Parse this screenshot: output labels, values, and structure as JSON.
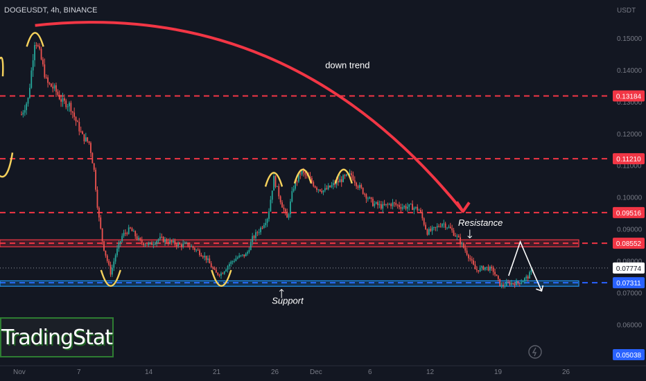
{
  "header": {
    "symbol_line": "DOGEUSDT, 4h, BINANCE"
  },
  "logo": {
    "text": "TradingStat"
  },
  "colors": {
    "background": "#131722",
    "up": "#26a69a",
    "down": "#ef5350",
    "trend_arrow": "#f23645",
    "level_line": "#f23645",
    "support_line": "#2962ff",
    "resistance_zone": "#f23645",
    "support_zone": "#2196f3",
    "annotation": "#f5d15c"
  },
  "chart_data": {
    "type": "candlestick",
    "symbol": "DOGEUSDT",
    "interval": "4h",
    "exchange": "BINANCE",
    "y_unit": "USDT",
    "ylim": [
      0.047,
      0.162
    ],
    "y_ticks": [
      "0.15000",
      "0.14000",
      "0.13000",
      "0.12000",
      "0.11000",
      "0.10000",
      "0.09000",
      "0.08000",
      "0.07000",
      "0.06000"
    ],
    "y_tick_values": [
      0.15,
      0.14,
      0.13,
      0.12,
      0.11,
      0.1,
      0.09,
      0.08,
      0.07,
      0.06
    ],
    "x_ticks": [
      "Nov",
      "7",
      "14",
      "21",
      "26",
      "Dec",
      "6",
      "12",
      "19",
      "26"
    ],
    "x_tick_values": [
      0,
      6,
      13,
      20,
      26,
      30,
      36,
      42,
      49,
      56
    ],
    "close_path": [
      {
        "x": 0,
        "y": 0.126
      },
      {
        "x": 0.7,
        "y": 0.131
      },
      {
        "x": 1.4,
        "y": 0.15
      },
      {
        "x": 1.9,
        "y": 0.145
      },
      {
        "x": 2.6,
        "y": 0.136
      },
      {
        "x": 3.4,
        "y": 0.134
      },
      {
        "x": 4.2,
        "y": 0.13
      },
      {
        "x": 5.0,
        "y": 0.129
      },
      {
        "x": 5.6,
        "y": 0.124
      },
      {
        "x": 6.3,
        "y": 0.119
      },
      {
        "x": 7.0,
        "y": 0.117
      },
      {
        "x": 7.5,
        "y": 0.108
      },
      {
        "x": 7.9,
        "y": 0.095
      },
      {
        "x": 8.4,
        "y": 0.085
      },
      {
        "x": 9.2,
        "y": 0.076
      },
      {
        "x": 9.7,
        "y": 0.082
      },
      {
        "x": 10.4,
        "y": 0.088
      },
      {
        "x": 11.2,
        "y": 0.09
      },
      {
        "x": 12.2,
        "y": 0.086
      },
      {
        "x": 13.2,
        "y": 0.085
      },
      {
        "x": 14.2,
        "y": 0.087
      },
      {
        "x": 15.2,
        "y": 0.086
      },
      {
        "x": 16.2,
        "y": 0.085
      },
      {
        "x": 17.2,
        "y": 0.085
      },
      {
        "x": 18.2,
        "y": 0.083
      },
      {
        "x": 19.0,
        "y": 0.081
      },
      {
        "x": 20.0,
        "y": 0.076
      },
      {
        "x": 20.6,
        "y": 0.076
      },
      {
        "x": 21.4,
        "y": 0.079
      },
      {
        "x": 22.2,
        "y": 0.081
      },
      {
        "x": 23.2,
        "y": 0.082
      },
      {
        "x": 23.8,
        "y": 0.087
      },
      {
        "x": 24.6,
        "y": 0.09
      },
      {
        "x": 25.4,
        "y": 0.094
      },
      {
        "x": 26.0,
        "y": 0.106
      },
      {
        "x": 26.8,
        "y": 0.098
      },
      {
        "x": 27.4,
        "y": 0.093
      },
      {
        "x": 28.0,
        "y": 0.103
      },
      {
        "x": 28.8,
        "y": 0.108
      },
      {
        "x": 29.6,
        "y": 0.106
      },
      {
        "x": 30.4,
        "y": 0.103
      },
      {
        "x": 31.2,
        "y": 0.102
      },
      {
        "x": 32.2,
        "y": 0.104
      },
      {
        "x": 33.2,
        "y": 0.106
      },
      {
        "x": 34.0,
        "y": 0.107
      },
      {
        "x": 34.6,
        "y": 0.104
      },
      {
        "x": 35.4,
        "y": 0.101
      },
      {
        "x": 36.2,
        "y": 0.098
      },
      {
        "x": 37.2,
        "y": 0.097
      },
      {
        "x": 38.2,
        "y": 0.098
      },
      {
        "x": 39.2,
        "y": 0.097
      },
      {
        "x": 40.2,
        "y": 0.097
      },
      {
        "x": 41.0,
        "y": 0.096
      },
      {
        "x": 41.8,
        "y": 0.089
      },
      {
        "x": 42.6,
        "y": 0.09
      },
      {
        "x": 43.4,
        "y": 0.092
      },
      {
        "x": 44.2,
        "y": 0.09
      },
      {
        "x": 45.0,
        "y": 0.087
      },
      {
        "x": 46.0,
        "y": 0.082
      },
      {
        "x": 46.8,
        "y": 0.077
      },
      {
        "x": 47.8,
        "y": 0.078
      },
      {
        "x": 48.6,
        "y": 0.077
      },
      {
        "x": 49.4,
        "y": 0.072
      },
      {
        "x": 50.2,
        "y": 0.073
      },
      {
        "x": 51.2,
        "y": 0.073
      },
      {
        "x": 52.2,
        "y": 0.075
      },
      {
        "x": 52.8,
        "y": 0.0777
      }
    ],
    "horizontal_levels": [
      {
        "value": 0.13184,
        "label": "0.13184",
        "color": "#f23645",
        "style": "dashed"
      },
      {
        "value": 0.1121,
        "label": "0.11210",
        "color": "#f23645",
        "style": "dashed"
      },
      {
        "value": 0.09516,
        "label": "0.09516",
        "color": "#f23645",
        "style": "dashed"
      },
      {
        "value": 0.08552,
        "label": "0.08552",
        "color": "#f23645",
        "style": "dashed"
      },
      {
        "value": 0.07311,
        "label": "0.07311",
        "color": "#2962ff",
        "style": "dashed"
      }
    ],
    "current_price": {
      "value": 0.07774,
      "label": "0.07774"
    },
    "last_label": {
      "value": 0.05038,
      "label": "0.05038"
    },
    "zones": [
      {
        "name": "Resistance",
        "from": 0.0844,
        "to": 0.0866,
        "color": "#f23645"
      },
      {
        "name": "Support",
        "from": 0.072,
        "to": 0.0737,
        "color": "#2196f3"
      }
    ],
    "trend_arrow": {
      "label": "down trend",
      "from": {
        "x": 1.4,
        "y": 0.154
      },
      "to": {
        "x": 45.5,
        "y": 0.0955
      }
    },
    "annotations": [
      {
        "text": "Resistance",
        "x": 45.0,
        "y": 0.091
      },
      {
        "text": "Support",
        "x": 25.8,
        "y": 0.0665
      },
      {
        "text": "down trend",
        "x": 31.3,
        "y": 0.1405
      }
    ],
    "peak_markers": [
      {
        "x": 1.4,
        "y": 0.153
      },
      {
        "x": 26.0,
        "y": 0.109
      },
      {
        "x": 29.0,
        "y": 0.11
      },
      {
        "x": 33.2,
        "y": 0.11
      }
    ],
    "trough_markers": [
      {
        "x": 9.2,
        "y": 0.071
      },
      {
        "x": 20.6,
        "y": 0.071
      }
    ],
    "projection_path": [
      {
        "x": 50.2,
        "y": 0.0753
      },
      {
        "x": 51.4,
        "y": 0.086
      },
      {
        "x": 52.8,
        "y": 0.076
      },
      {
        "x": 53.6,
        "y": 0.0705
      }
    ]
  }
}
